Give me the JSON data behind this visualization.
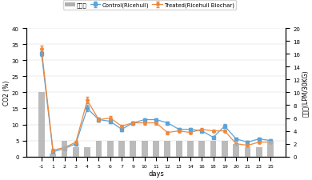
{
  "days": [
    -1,
    1,
    2,
    3,
    4,
    5,
    6,
    7,
    9,
    10,
    11,
    12,
    13,
    14,
    16,
    18,
    19,
    20,
    21,
    23,
    25
  ],
  "control_co2": [
    32.0,
    1.5,
    2.5,
    4.0,
    15.0,
    11.5,
    11.0,
    8.5,
    10.5,
    11.5,
    11.5,
    10.5,
    8.5,
    8.5,
    8.0,
    6.0,
    9.5,
    5.5,
    4.5,
    5.5,
    5.0
  ],
  "control_err": [
    0.8,
    0.4,
    0.4,
    0.5,
    1.0,
    0.7,
    0.6,
    0.5,
    0.5,
    0.5,
    0.5,
    0.5,
    0.4,
    0.4,
    0.4,
    0.4,
    0.7,
    0.4,
    0.4,
    0.4,
    0.4
  ],
  "treated_co2": [
    33.5,
    2.0,
    2.8,
    4.5,
    17.5,
    11.5,
    12.0,
    9.5,
    10.5,
    10.5,
    10.5,
    7.5,
    8.0,
    7.5,
    8.5,
    8.0,
    8.0,
    4.0,
    3.5,
    4.5,
    4.5
  ],
  "treated_err": [
    1.0,
    0.4,
    0.4,
    0.5,
    1.0,
    0.7,
    0.7,
    0.5,
    0.5,
    0.5,
    0.5,
    0.5,
    0.4,
    0.4,
    0.4,
    0.4,
    0.4,
    0.4,
    0.4,
    0.4,
    0.4
  ],
  "bar_values_right": [
    10,
    0.5,
    2.5,
    1.5,
    1.5,
    2.5,
    2.5,
    2.5,
    2.5,
    2.5,
    2.5,
    2.5,
    2.5,
    2.5,
    2.5,
    2.5,
    2.5,
    2.0,
    1.5,
    1.5,
    2.5
  ],
  "bar_color": "#b0b0b0",
  "control_color": "#5ba3d9",
  "treated_color": "#f0883a",
  "ylabel_left": "CO2 (%)",
  "ylabel_right": "송풍량(LPM/30KG)",
  "xlabel": "days",
  "legend_bar": "송풍량",
  "legend_control": "Control(Ricehull)",
  "legend_treated": "Treated(Ricehull Biochar)",
  "ylim_left": [
    0,
    40
  ],
  "ylim_right": [
    0,
    20
  ],
  "yticks_left": [
    0,
    5,
    10,
    15,
    20,
    25,
    30,
    35,
    40
  ],
  "yticks_right": [
    0,
    2,
    4,
    6,
    8,
    10,
    12,
    14,
    16,
    18,
    20
  ],
  "background_color": "#ffffff",
  "figsize": [
    3.9,
    2.26
  ],
  "dpi": 100
}
